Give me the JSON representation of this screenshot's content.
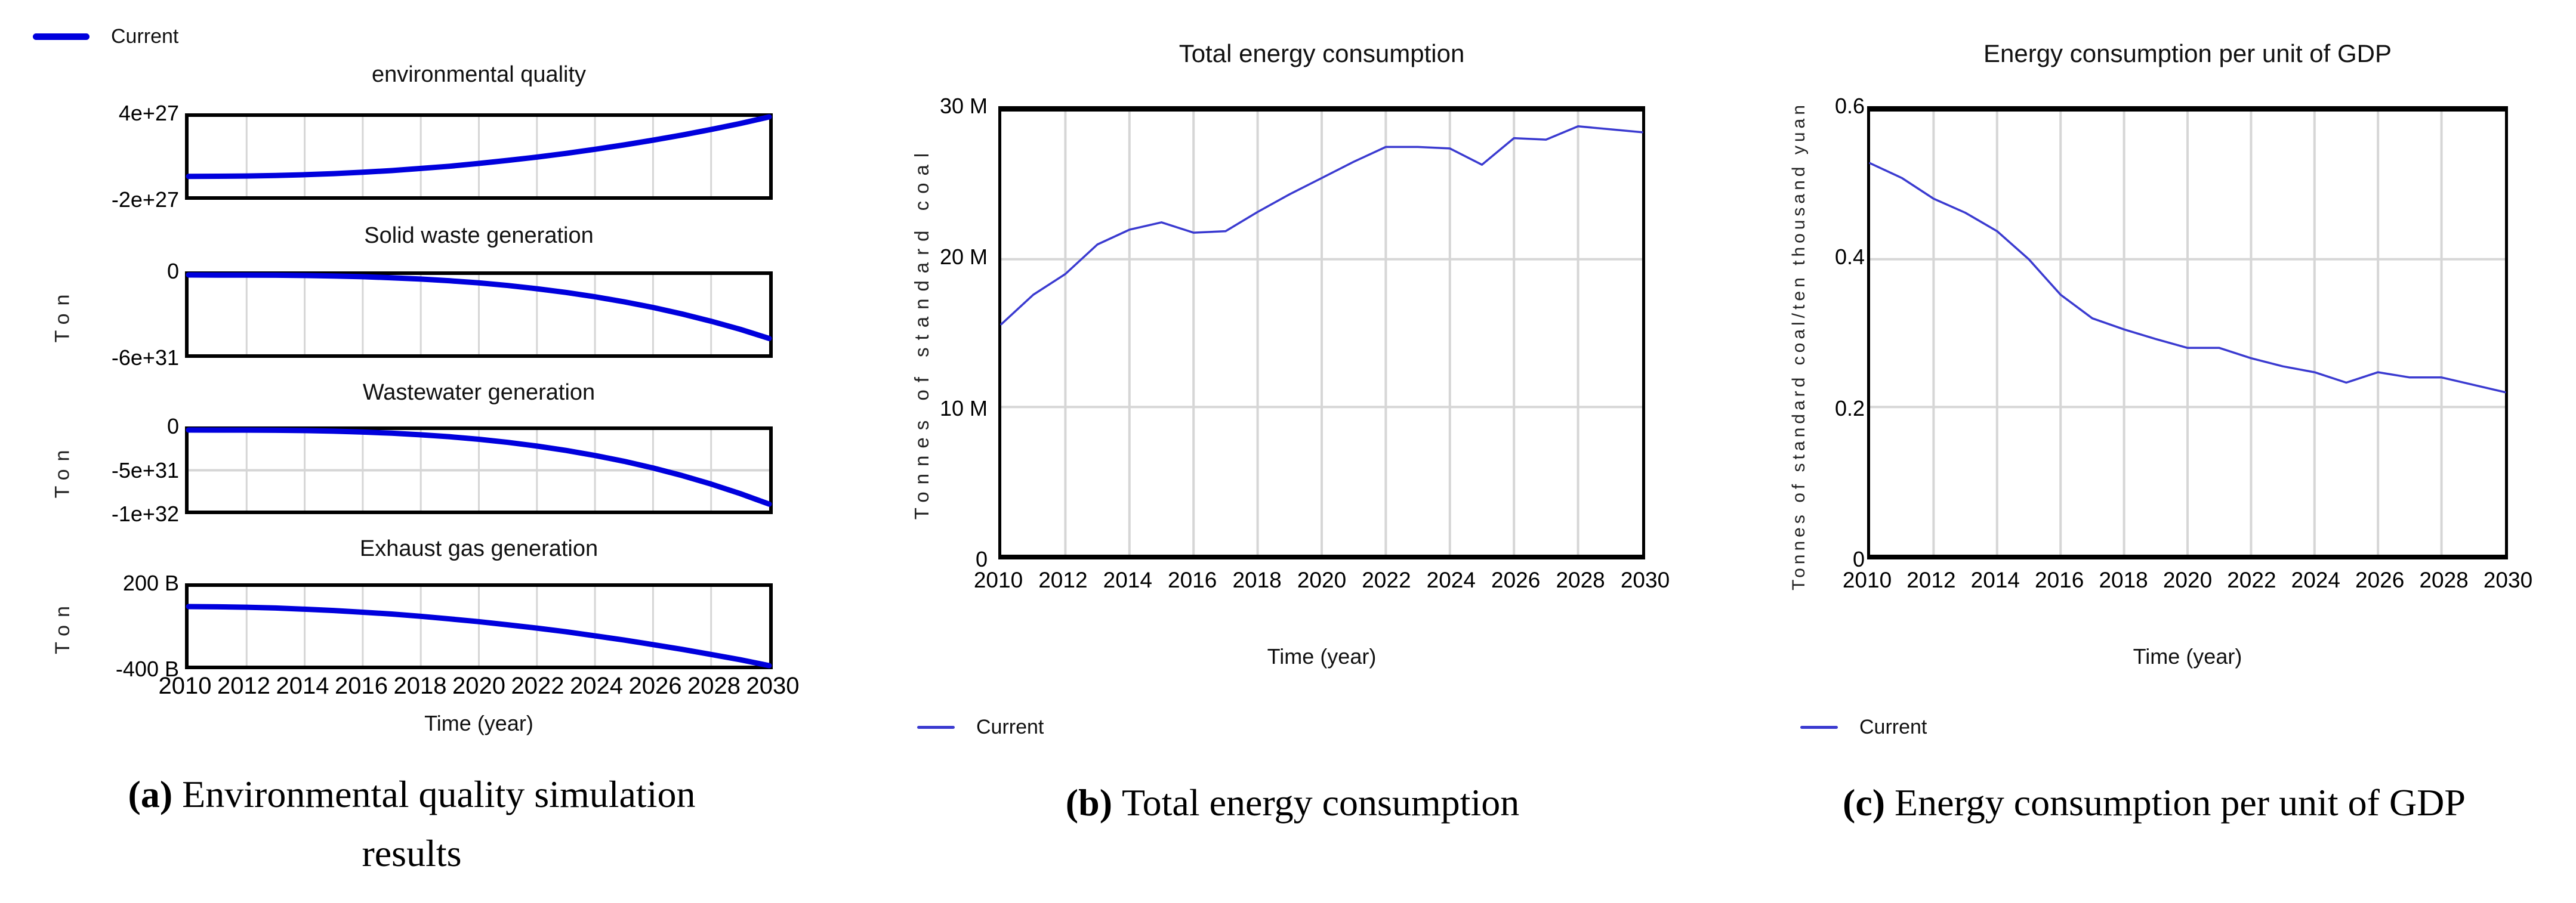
{
  "colors": {
    "line_a": "#0000dd",
    "line_bc": "#3a3ad0",
    "grid": "#d6d6d6",
    "frame": "#000000",
    "background": "#ffffff"
  },
  "legend_top": {
    "label": "Current"
  },
  "panels": {
    "a": {
      "xlabel": "Time (year)",
      "ton_label": "Ton",
      "caption_tag": "(a)",
      "caption_line1": "Environmental quality simulation",
      "caption_line2": "results"
    },
    "b": {
      "xlabel": "Time (year)",
      "legend_label": "Current",
      "caption_tag": "(b)",
      "caption": "Total energy consumption"
    },
    "c": {
      "xlabel": "Time (year)",
      "legend_label": "Current",
      "caption_tag": "(c)",
      "caption": "Energy consumption per unit of GDP"
    }
  },
  "chart_data": [
    {
      "type": "line",
      "title": "environmental quality",
      "ylabel": "",
      "xlabel": "",
      "unit": "1e+27",
      "x": [
        2010,
        2011,
        2012,
        2013,
        2014,
        2015,
        2016,
        2017,
        2018,
        2019,
        2020,
        2021,
        2022,
        2023,
        2024,
        2025,
        2026,
        2027,
        2028,
        2029,
        2030
      ],
      "values": [
        -0.5,
        -0.49,
        -0.47,
        -0.43,
        -0.37,
        -0.29,
        -0.18,
        -0.06,
        0.1,
        0.27,
        0.48,
        0.71,
        0.96,
        1.24,
        1.55,
        1.88,
        2.24,
        2.63,
        3.05,
        3.5,
        4.0
      ],
      "xlim": [
        2010,
        2030
      ],
      "ylim": [
        -2,
        4
      ],
      "yticks": [
        {
          "label": "4e+27",
          "value": 4
        },
        {
          "label": "-2e+27",
          "value": -2
        }
      ],
      "hgrid": [],
      "xgrid_step": 2,
      "legend": "Current"
    },
    {
      "type": "line",
      "title": "Solid waste generation",
      "ylabel": "Ton",
      "xlabel": "",
      "unit": "1e+31",
      "x": [
        2010,
        2011,
        2012,
        2013,
        2014,
        2015,
        2016,
        2017,
        2018,
        2019,
        2020,
        2021,
        2022,
        2023,
        2024,
        2025,
        2026,
        2027,
        2028,
        2029,
        2030
      ],
      "values": [
        0,
        -0.01,
        -0.01,
        -0.02,
        -0.04,
        -0.08,
        -0.13,
        -0.21,
        -0.31,
        -0.44,
        -0.6,
        -0.8,
        -1.04,
        -1.32,
        -1.65,
        -2.03,
        -2.46,
        -2.95,
        -3.5,
        -4.11,
        -4.8
      ],
      "xlim": [
        2010,
        2030
      ],
      "ylim": [
        -6,
        0
      ],
      "yticks": [
        {
          "label": "0",
          "value": 0
        },
        {
          "label": "-6e+31",
          "value": -6
        }
      ],
      "hgrid": [],
      "xgrid_step": 2,
      "legend": "Current"
    },
    {
      "type": "line",
      "title": "Wastewater generation",
      "ylabel": "Ton",
      "xlabel": "",
      "unit": "1e+31",
      "x": [
        2010,
        2011,
        2012,
        2013,
        2014,
        2015,
        2016,
        2017,
        2018,
        2019,
        2020,
        2021,
        2022,
        2023,
        2024,
        2025,
        2026,
        2027,
        2028,
        2029,
        2030
      ],
      "values": [
        0,
        -0.01,
        -0.01,
        -0.03,
        -0.07,
        -0.14,
        -0.25,
        -0.39,
        -0.59,
        -0.84,
        -1.15,
        -1.53,
        -1.99,
        -2.53,
        -3.16,
        -3.88,
        -4.71,
        -5.65,
        -6.71,
        -7.89,
        -9.2
      ],
      "xlim": [
        2010,
        2030
      ],
      "ylim": [
        -10,
        0
      ],
      "yticks": [
        {
          "label": "0",
          "value": 0
        },
        {
          "label": "-5e+31",
          "value": -5
        },
        {
          "label": "-1e+32",
          "value": -10
        }
      ],
      "hgrid": [
        -5
      ],
      "xgrid_step": 2,
      "legend": "Current"
    },
    {
      "type": "line",
      "title": "Exhaust gas generation",
      "ylabel": "Ton",
      "xlabel": "Time (year)",
      "unit": "billion",
      "x": [
        2010,
        2011,
        2012,
        2013,
        2014,
        2015,
        2016,
        2017,
        2018,
        2019,
        2020,
        2021,
        2022,
        2023,
        2024,
        2025,
        2026,
        2027,
        2028,
        2029,
        2030
      ],
      "values": [
        50,
        48,
        45,
        39,
        30,
        20,
        7,
        -7,
        -24,
        -44,
        -65,
        -89,
        -114,
        -142,
        -173,
        -205,
        -240,
        -276,
        -315,
        -355,
        -400
      ],
      "xlim": [
        2010,
        2030
      ],
      "ylim": [
        -400,
        200
      ],
      "yticks": [
        {
          "label": "200 B",
          "value": 200
        },
        {
          "label": "-400 B",
          "value": -400
        }
      ],
      "hgrid": [],
      "xgrid_step": 2,
      "xtick_labels": [
        "2010",
        "2012",
        "2014",
        "2016",
        "2018",
        "2020",
        "2022",
        "2024",
        "2026",
        "2028",
        "2030"
      ],
      "legend": "Current"
    },
    {
      "type": "line",
      "title": "Total energy consumption",
      "ylabel": "Tonnes of standard coal",
      "xlabel": "Time (year)",
      "unit": "million",
      "x": [
        2010,
        2011,
        2012,
        2013,
        2014,
        2015,
        2016,
        2017,
        2018,
        2019,
        2020,
        2021,
        2022,
        2023,
        2024,
        2025,
        2026,
        2027,
        2028,
        2029,
        2030
      ],
      "values": [
        15.6,
        17.6,
        19.0,
        21.0,
        22.0,
        22.5,
        21.8,
        21.9,
        23.2,
        24.4,
        25.5,
        26.6,
        27.6,
        27.6,
        27.5,
        26.4,
        28.2,
        28.1,
        29.0,
        28.8,
        28.6
      ],
      "xlim": [
        2010,
        2030
      ],
      "ylim": [
        0,
        30
      ],
      "yticks": [
        {
          "label": "30 M",
          "value": 30
        },
        {
          "label": "20 M",
          "value": 20
        },
        {
          "label": "10 M",
          "value": 10
        },
        {
          "label": "0",
          "value": 0
        }
      ],
      "hgrid": [
        10,
        20
      ],
      "xgrid_step": 2,
      "xtick_labels": [
        "2010",
        "2012",
        "2014",
        "2016",
        "2018",
        "2020",
        "2022",
        "2024",
        "2026",
        "2028",
        "2030"
      ],
      "legend": "Current"
    },
    {
      "type": "line",
      "title": "Energy consumption per unit of GDP",
      "ylabel": "Tonnes of standard coal/ten thousand yuan",
      "xlabel": "Time (year)",
      "unit": "",
      "x": [
        2010,
        2011,
        2012,
        2013,
        2014,
        2015,
        2016,
        2017,
        2018,
        2019,
        2020,
        2021,
        2022,
        2023,
        2024,
        2025,
        2026,
        2027,
        2028,
        2029,
        2030
      ],
      "values": [
        0.53,
        0.51,
        0.482,
        0.463,
        0.438,
        0.4,
        0.352,
        0.32,
        0.305,
        0.292,
        0.28,
        0.28,
        0.266,
        0.255,
        0.247,
        0.233,
        0.247,
        0.24,
        0.24,
        0.23,
        0.22
      ],
      "xlim": [
        2010,
        2030
      ],
      "ylim": [
        0,
        0.6
      ],
      "yticks": [
        {
          "label": "0.6",
          "value": 0.6
        },
        {
          "label": "0.4",
          "value": 0.4
        },
        {
          "label": "0.2",
          "value": 0.2
        },
        {
          "label": "0",
          "value": 0
        }
      ],
      "hgrid": [
        0.2,
        0.4
      ],
      "xgrid_step": 2,
      "xtick_labels": [
        "2010",
        "2012",
        "2014",
        "2016",
        "2018",
        "2020",
        "2022",
        "2024",
        "2026",
        "2028",
        "2030"
      ],
      "legend": "Current"
    }
  ]
}
